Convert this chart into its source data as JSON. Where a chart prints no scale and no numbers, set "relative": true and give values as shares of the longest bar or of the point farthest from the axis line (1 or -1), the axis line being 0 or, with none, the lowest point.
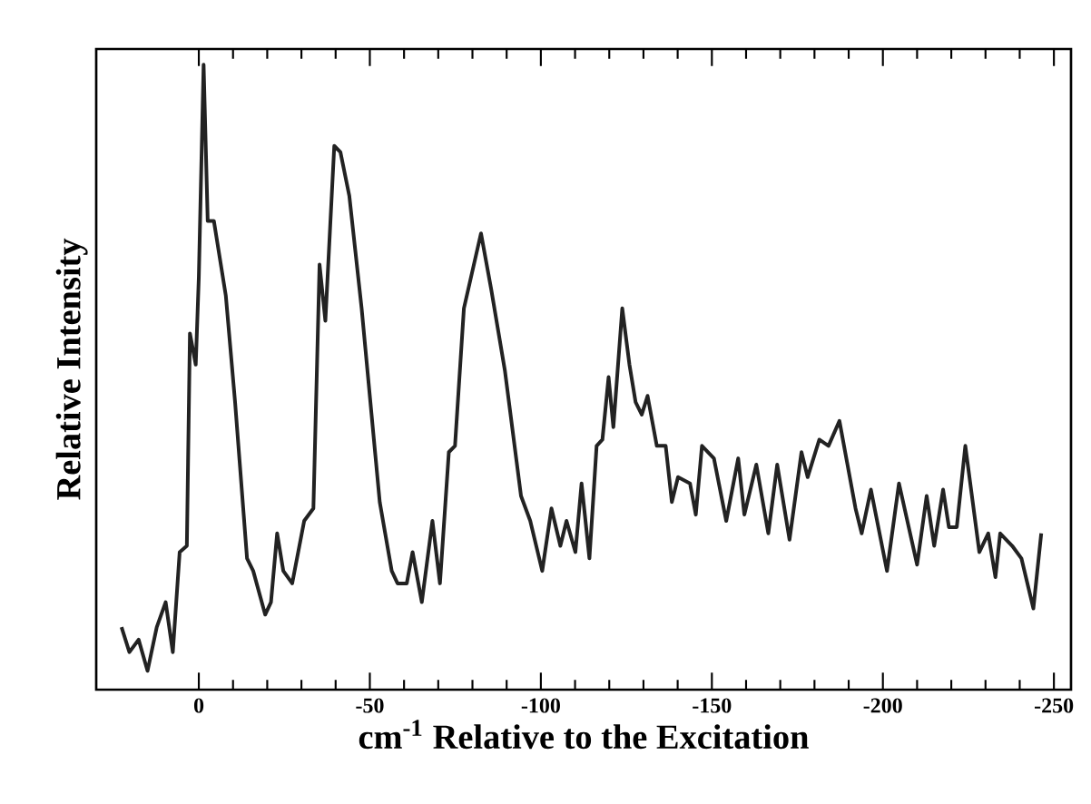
{
  "chart_data": {
    "type": "line",
    "relative": true,
    "xlabel": "cm$^{-1}$ Relative to the Excitation",
    "ylabel": "Relative Intensity",
    "color": "#222222",
    "xlim": [
      30,
      -255
    ],
    "xticks": [
      0,
      -50,
      -100,
      -150,
      -200,
      -250
    ],
    "x": [
      22.6,
      20.3,
      17.6,
      15.0,
      12.3,
      9.7,
      7.6,
      5.6,
      3.5,
      2.6,
      0.9,
      0,
      -1.4,
      -2.6,
      -4.4,
      -7.9,
      -10.6,
      -14.1,
      -15.9,
      -19.4,
      -21.1,
      -22.9,
      -24.7,
      -27.3,
      -30.8,
      -33.5,
      -35.3,
      -37.0,
      -39.6,
      -41.4,
      -44.0,
      -47.6,
      -52.9,
      -56.4,
      -58.1,
      -60.8,
      -62.5,
      -65.2,
      -68.3,
      -70.5,
      -73.1,
      -74.9,
      -77.5,
      -82.5,
      -85.5,
      -89.5,
      -94.2,
      -96.9,
      -100.4,
      -103.1,
      -105.7,
      -107.5,
      -110.1,
      -111.9,
      -114.2,
      -116.3,
      -118.0,
      -119.8,
      -121.2,
      -123.8,
      -125.9,
      -127.7,
      -129.5,
      -131.2,
      -133.9,
      -136.5,
      -138.3,
      -140.1,
      -143.6,
      -145.3,
      -147.1,
      -150.6,
      -154.2,
      -157.7,
      -159.5,
      -163.0,
      -166.5,
      -169.1,
      -172.7,
      -176.2,
      -178.0,
      -181.4,
      -184.1,
      -187.3,
      -192.0,
      -193.8,
      -196.5,
      -201.2,
      -204.7,
      -210.0,
      -212.8,
      -215.0,
      -217.6,
      -219.3,
      -221.6,
      -224.1,
      -228.2,
      -230.8,
      -232.9,
      -234.3,
      -237.8,
      -240.5,
      -244.0,
      -246.3
    ],
    "values": [
      0.1,
      0.06,
      0.08,
      0.03,
      0.1,
      0.14,
      0.06,
      0.22,
      0.23,
      0.57,
      0.52,
      0.66,
      1.0,
      0.75,
      0.75,
      0.63,
      0.46,
      0.21,
      0.19,
      0.12,
      0.14,
      0.25,
      0.19,
      0.17,
      0.27,
      0.29,
      0.68,
      0.59,
      0.87,
      0.86,
      0.79,
      0.61,
      0.3,
      0.19,
      0.17,
      0.17,
      0.22,
      0.14,
      0.27,
      0.17,
      0.38,
      0.39,
      0.61,
      0.73,
      0.64,
      0.51,
      0.31,
      0.27,
      0.19,
      0.29,
      0.23,
      0.27,
      0.22,
      0.33,
      0.21,
      0.39,
      0.4,
      0.5,
      0.42,
      0.61,
      0.52,
      0.46,
      0.44,
      0.47,
      0.39,
      0.39,
      0.3,
      0.34,
      0.33,
      0.28,
      0.39,
      0.37,
      0.27,
      0.37,
      0.28,
      0.36,
      0.25,
      0.36,
      0.24,
      0.38,
      0.34,
      0.4,
      0.39,
      0.43,
      0.29,
      0.25,
      0.32,
      0.19,
      0.33,
      0.2,
      0.31,
      0.23,
      0.32,
      0.26,
      0.26,
      0.39,
      0.22,
      0.25,
      0.18,
      0.25,
      0.23,
      0.21,
      0.13,
      0.25
    ]
  }
}
